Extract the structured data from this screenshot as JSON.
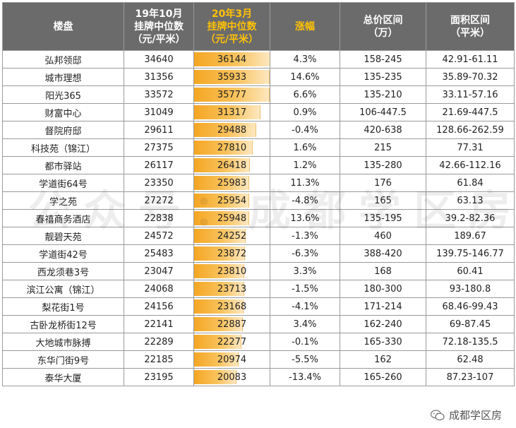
{
  "headers": {
    "estate": "楼盘",
    "oct19_line1": "19年10月",
    "oct19_line2": "挂牌中位数",
    "oct19_line3": "（元/平米）",
    "mar20_line1": "20年3月",
    "mar20_line2": "挂牌中位数",
    "mar20_line3": "（元/平米）",
    "change": "涨幅",
    "price_line1": "总价区间",
    "price_line2": "（万）",
    "area_line1": "面积区间",
    "area_line2": "（平米）"
  },
  "bar_max": 36144,
  "rows": [
    {
      "name": "弘邦领邸",
      "oct19": "34640",
      "mar20": "36144",
      "mar20_value": 36144,
      "change": "4.3%",
      "price": "158-245",
      "area": "42.91-61.11"
    },
    {
      "name": "城市理想",
      "oct19": "31356",
      "mar20": "35933",
      "mar20_value": 35933,
      "change": "14.6%",
      "price": "135-235",
      "area": "35.89-70.32"
    },
    {
      "name": "阳光365",
      "oct19": "33572",
      "mar20": "35777",
      "mar20_value": 35777,
      "change": "6.6%",
      "price": "135-210",
      "area": "33.11-57.16"
    },
    {
      "name": "财富中心",
      "oct19": "31049",
      "mar20": "31317",
      "mar20_value": 31317,
      "change": "0.9%",
      "price": "106-447.5",
      "area": "21.69-447.5"
    },
    {
      "name": "督院府邸",
      "oct19": "29611",
      "mar20": "29488",
      "mar20_value": 29488,
      "change": "-0.4%",
      "price": "420-638",
      "area": "128.66-262.59"
    },
    {
      "name": "科技苑（锦江）",
      "oct19": "27375",
      "mar20": "27810",
      "mar20_value": 27810,
      "change": "1.6%",
      "price": "215",
      "area": "77.31"
    },
    {
      "name": "都市驿站",
      "oct19": "26117",
      "mar20": "26418",
      "mar20_value": 26418,
      "change": "1.2%",
      "price": "135-280",
      "area": "42.66-112.16"
    },
    {
      "name": "学道街64号",
      "oct19": "23350",
      "mar20": "25983",
      "mar20_value": 25983,
      "change": "11.3%",
      "price": "176",
      "area": "61.84"
    },
    {
      "name": "学之苑",
      "oct19": "27272",
      "mar20": "25954",
      "mar20_value": 25954,
      "change": "-4.8%",
      "price": "165",
      "area": "63.13"
    },
    {
      "name": "春禧商务酒店",
      "oct19": "22838",
      "mar20": "25948",
      "mar20_value": 25948,
      "change": "13.6%",
      "price": "135-195",
      "area": "39.2-82.36"
    },
    {
      "name": "靓碧天苑",
      "oct19": "24572",
      "mar20": "24252",
      "mar20_value": 24252,
      "change": "-1.3%",
      "price": "460",
      "area": "189.67"
    },
    {
      "name": "学道街42号",
      "oct19": "25483",
      "mar20": "23872",
      "mar20_value": 23872,
      "change": "-6.3%",
      "price": "388-420",
      "area": "139.75-146.77"
    },
    {
      "name": "西龙须巷3号",
      "oct19": "23047",
      "mar20": "23810",
      "mar20_value": 23810,
      "change": "3.3%",
      "price": "168",
      "area": "60.41"
    },
    {
      "name": "滨江公寓（锦江）",
      "oct19": "24068",
      "mar20": "23713",
      "mar20_value": 23713,
      "change": "-1.5%",
      "price": "180-300",
      "area": "93-180.8"
    },
    {
      "name": "梨花街1号",
      "oct19": "24156",
      "mar20": "23168",
      "mar20_value": 23168,
      "change": "-4.1%",
      "price": "171-214",
      "area": "68.46-99.43"
    },
    {
      "name": "古卧龙桥街12号",
      "oct19": "22141",
      "mar20": "22887",
      "mar20_value": 22887,
      "change": "3.4%",
      "price": "162-240",
      "area": "69-87.45"
    },
    {
      "name": "大地城市脉搏",
      "oct19": "22289",
      "mar20": "22277",
      "mar20_value": 22277,
      "change": "-0.1%",
      "price": "165-330",
      "area": "72.18-135.5"
    },
    {
      "name": "东华门街9号",
      "oct19": "22185",
      "mar20": "20974",
      "mar20_value": 20974,
      "change": "-5.5%",
      "price": "162",
      "area": "62.48"
    },
    {
      "name": "泰华大厦",
      "oct19": "23195",
      "mar20": "20083",
      "mar20_value": 20083,
      "change": "-13.4%",
      "price": "165-260",
      "area": "87.23-107"
    }
  ],
  "watermark": "公众号：成都学区房",
  "brand": "成都学区房",
  "colors": {
    "header_bg": "#6b6b6b",
    "header_highlight": "#ffc107",
    "bar": "#f5a623"
  },
  "icons": {
    "brand": "wechat-icon"
  }
}
